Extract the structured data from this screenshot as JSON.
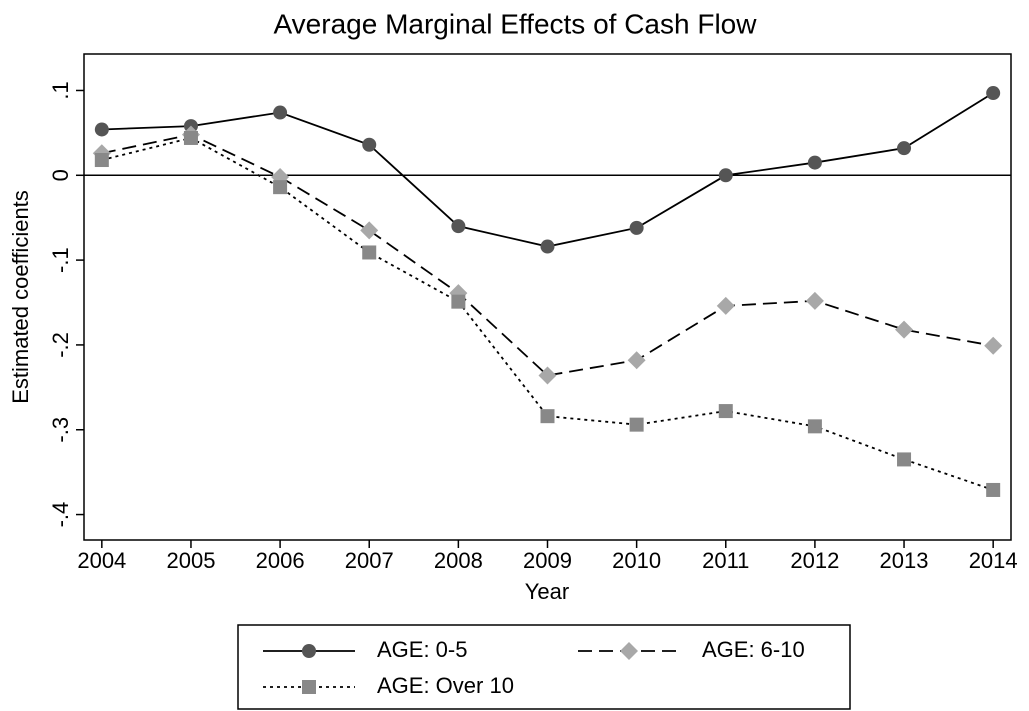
{
  "chart_data": {
    "type": "line",
    "title": "Average Marginal Effects of Cash Flow",
    "x_label": "Year",
    "y_label": "Estimated coefficients",
    "x": [
      2004,
      2005,
      2006,
      2007,
      2008,
      2009,
      2010,
      2011,
      2012,
      2013,
      2014
    ],
    "xlim": [
      2003.8,
      2014.2
    ],
    "xticks": [
      2004,
      2005,
      2006,
      2007,
      2008,
      2009,
      2010,
      2011,
      2012,
      2013,
      2014
    ],
    "ylim": [
      -0.43,
      0.143
    ],
    "yticks": [
      {
        "value": 0.1,
        "label": ".1"
      },
      0,
      {
        "value": -0.1,
        "label": "-.1"
      },
      {
        "value": -0.2,
        "label": "-.2"
      },
      {
        "value": -0.3,
        "label": "-.3"
      },
      {
        "value": -0.4,
        "label": "-.4"
      }
    ],
    "reference_line": 0,
    "series": [
      {
        "name": "AGE: 0-5",
        "color": "#555555",
        "marker": "circle",
        "dash": "solid",
        "values": [
          0.054,
          0.058,
          0.074,
          0.036,
          -0.06,
          -0.084,
          -0.062,
          0,
          0.015,
          0.032,
          0.097
        ]
      },
      {
        "name": "AGE: 6-10",
        "color": "#a8a8a8",
        "marker": "diamond",
        "dash": "dashed",
        "values": [
          0.026,
          0.048,
          -0.002,
          -0.065,
          -0.139,
          -0.236,
          -0.218,
          -0.154,
          -0.148,
          -0.182,
          -0.201
        ]
      },
      {
        "name": "AGE: Over 10",
        "color": "#888888",
        "marker": "square",
        "dash": "dotted",
        "values": [
          0.018,
          0.044,
          -0.014,
          -0.091,
          -0.149,
          -0.284,
          -0.294,
          -0.278,
          -0.296,
          -0.335,
          -0.371
        ]
      }
    ]
  }
}
